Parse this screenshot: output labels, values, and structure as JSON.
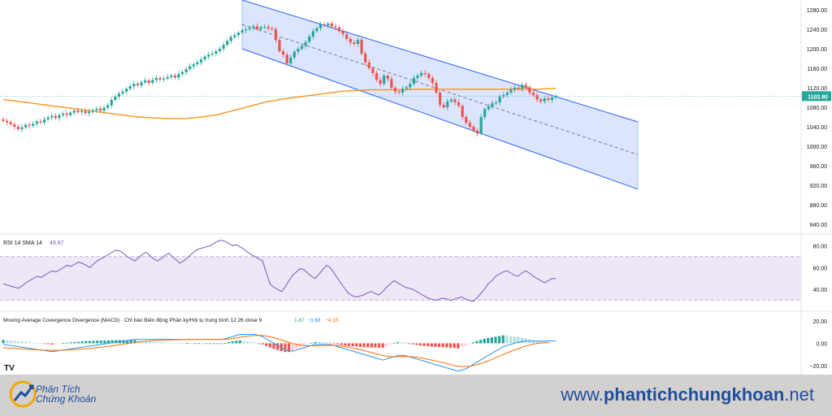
{
  "chart_data": [
    {
      "type": "candlestick",
      "title": "",
      "price_axis_ticks": [
        "1280.00",
        "1240.00",
        "1200.00",
        "1160.00",
        "1120.00",
        "1080.00",
        "1040.00",
        "1000.00",
        "960.00",
        "920.00",
        "880.00",
        "840.00"
      ],
      "ylim": [
        820,
        1300
      ],
      "last_price_label": "1102.80",
      "last_price": 1102.8,
      "close_series": [
        1052,
        1049,
        1045,
        1040,
        1035,
        1039,
        1044,
        1042,
        1046,
        1051,
        1049,
        1055,
        1059,
        1062,
        1058,
        1064,
        1067,
        1064,
        1069,
        1073,
        1070,
        1072,
        1068,
        1071,
        1074,
        1077,
        1073,
        1079,
        1084,
        1095,
        1102,
        1108,
        1112,
        1118,
        1123,
        1128,
        1125,
        1131,
        1135,
        1130,
        1136,
        1140,
        1137,
        1139,
        1142,
        1145,
        1141,
        1148,
        1152,
        1158,
        1164,
        1168,
        1172,
        1178,
        1184,
        1188,
        1190,
        1195,
        1200,
        1208,
        1216,
        1224,
        1228,
        1233,
        1238,
        1240,
        1243,
        1246,
        1240,
        1244,
        1245,
        1242,
        1240,
        1218,
        1195,
        1188,
        1170,
        1182,
        1194,
        1200,
        1206,
        1214,
        1225,
        1236,
        1242,
        1250,
        1248,
        1252,
        1246,
        1244,
        1236,
        1230,
        1220,
        1213,
        1210,
        1218,
        1190,
        1172,
        1160,
        1150,
        1136,
        1128,
        1145,
        1138,
        1120,
        1112,
        1110,
        1118,
        1121,
        1128,
        1140,
        1145,
        1150,
        1148,
        1140,
        1130,
        1110,
        1085,
        1080,
        1092,
        1096,
        1090,
        1083,
        1060,
        1048,
        1040,
        1032,
        1026,
        1060,
        1076,
        1082,
        1088,
        1090,
        1102,
        1105,
        1110,
        1116,
        1120,
        1118,
        1126,
        1121,
        1110,
        1105,
        1096,
        1092,
        1098,
        1095,
        1100,
        1102.8
      ],
      "sma_overlay_series": [
        1096,
        1095,
        1094,
        1093,
        1092,
        1091,
        1090,
        1089,
        1088,
        1087,
        1086,
        1085,
        1084,
        1083,
        1082,
        1081,
        1080,
        1079,
        1078,
        1077,
        1076,
        1075,
        1074,
        1073,
        1072,
        1071,
        1070,
        1069,
        1068,
        1067,
        1066,
        1065,
        1064,
        1063,
        1062,
        1061,
        1060,
        1060,
        1059,
        1059,
        1058,
        1058,
        1058,
        1057,
        1057,
        1057,
        1057,
        1057,
        1057,
        1057,
        1058,
        1058,
        1059,
        1060,
        1061,
        1062,
        1063,
        1064,
        1066,
        1068,
        1070,
        1072,
        1074,
        1076,
        1078,
        1080,
        1082,
        1084,
        1086,
        1088,
        1090,
        1092,
        1093,
        1094,
        1096,
        1097,
        1098,
        1099,
        1100,
        1101,
        1102,
        1103,
        1104,
        1105,
        1106,
        1107,
        1108,
        1109,
        1110,
        1111,
        1112,
        1113,
        1113,
        1114,
        1114,
        1115,
        1115,
        1115,
        1116,
        1116,
        1116,
        1116,
        1116,
        1116,
        1116,
        1116,
        1116,
        1116,
        1116,
        1117,
        1117,
        1117,
        1117,
        1117,
        1117,
        1117,
        1117,
        1117,
        1117,
        1117,
        1117,
        1117,
        1117,
        1117,
        1117,
        1117,
        1117,
        1117,
        1117,
        1117,
        1117,
        1117,
        1117,
        1117,
        1117,
        1117,
        1117,
        1117,
        1117,
        1117,
        1117,
        1117,
        1117,
        1117,
        1117,
        1118,
        1118,
        1118,
        1119
      ],
      "channel": {
        "upper_start": 1300,
        "upper_end": 1050,
        "mid_start": 1250,
        "mid_end": 983,
        "lower_start": 1200,
        "lower_end": 912
      },
      "colors": {
        "up": "#26a69a",
        "down": "#ef5350",
        "sma": "#f7931e",
        "channel_fill": "#d6e1fb",
        "channel_line": "#2962ff",
        "price_label_bg": "#26a69a"
      }
    },
    {
      "type": "line",
      "title": "RSI 14 SMA 14",
      "value_label": "49.87",
      "axis_ticks": [
        "80.00",
        "60.00",
        "40.00"
      ],
      "ylim": [
        20,
        90
      ],
      "band": [
        30,
        70
      ],
      "series": [
        {
          "values": [
            45,
            44,
            43,
            42,
            41,
            43,
            46,
            48,
            50,
            52,
            51,
            53,
            55,
            57,
            56,
            58,
            60,
            62,
            61,
            63,
            65,
            64,
            62,
            60,
            63,
            66,
            68,
            70,
            72,
            74,
            76,
            75,
            73,
            70,
            68,
            66,
            69,
            72,
            74,
            71,
            68,
            66,
            68,
            71,
            73,
            70,
            67,
            64,
            66,
            69,
            72,
            75,
            77,
            78,
            79,
            80,
            82,
            84,
            85,
            84,
            82,
            80,
            81,
            79,
            77,
            74,
            72,
            70,
            68,
            66,
            55,
            45,
            42,
            40,
            38,
            42,
            48,
            53,
            56,
            59,
            58,
            55,
            52,
            50,
            54,
            58,
            62,
            60,
            55,
            50,
            45,
            40,
            36,
            34,
            33,
            34,
            35,
            37,
            38,
            36,
            35,
            38,
            42,
            45,
            48,
            46,
            44,
            42,
            41,
            40,
            38,
            36,
            34,
            32,
            31,
            30,
            31,
            32,
            31,
            30,
            31,
            32,
            33,
            31,
            30,
            29,
            32,
            36,
            40,
            45,
            48,
            52,
            54,
            56,
            57,
            55,
            53,
            52,
            55,
            57,
            55,
            52,
            50,
            48,
            46,
            48,
            50,
            49.87
          ]
        }
      ],
      "colors": {
        "line": "#7e57c2",
        "band_fill": "#ede7f6"
      }
    },
    {
      "type": "bar",
      "title": "Moving Average Covergence Divergence (MACD) · Chỉ báo Biến động Phân kỳ/Hội tụ trung bình 12 26 close 9",
      "value_labels": [
        "1.87",
        "−3.68",
        "−4.15"
      ],
      "axis_ticks": [
        "20.00",
        "0.00",
        "−20.00"
      ],
      "ylim": [
        -28,
        28
      ],
      "macd": [
        -1,
        -1.5,
        -2,
        -2.5,
        -3,
        -3.5,
        -4,
        -4.5,
        -5,
        -5.5,
        -6,
        -6.5,
        -7,
        -7.5,
        -7,
        -6.5,
        -6,
        -5.5,
        -5,
        -4.5,
        -4,
        -3.5,
        -3,
        -2.5,
        -2,
        -1.5,
        -1,
        -0.5,
        0,
        0.5,
        1,
        1.5,
        2,
        2.5,
        3,
        3.5,
        3.5,
        3.5,
        3.5,
        3.5,
        3.5,
        3.5,
        3.5,
        3.5,
        3.5,
        3.5,
        3.5,
        3.5,
        3.5,
        3.5,
        3.5,
        3.5,
        3.5,
        3.5,
        3.5,
        3.5,
        3.5,
        3.5,
        3.5,
        4,
        5,
        6,
        7,
        8,
        8,
        8,
        8,
        8,
        7,
        6,
        4,
        2,
        0,
        -2,
        -4,
        -6,
        -7,
        -7,
        -6,
        -5,
        -4,
        -3,
        -2,
        -1,
        -1,
        -1,
        -1,
        -1,
        -2,
        -3,
        -4,
        -5,
        -6,
        -7,
        -8,
        -9,
        -10,
        -11,
        -12,
        -13,
        -14,
        -15,
        -14,
        -13,
        -12,
        -11,
        -11,
        -11,
        -12,
        -13,
        -14,
        -15,
        -16,
        -17,
        -18,
        -19,
        -20,
        -21,
        -22,
        -23,
        -24,
        -25,
        -24,
        -23,
        -21,
        -19,
        -17,
        -15,
        -13,
        -11,
        -9,
        -7,
        -5,
        -3,
        -2,
        -1,
        0,
        1,
        1.5,
        2,
        2,
        2,
        2,
        2,
        2,
        2,
        2,
        1.87
      ],
      "signal": [
        -4,
        -4.2,
        -4.4,
        -4.6,
        -4.8,
        -5,
        -5.2,
        -5.4,
        -5.6,
        -5.8,
        -6,
        -6.2,
        -6.3,
        -6.4,
        -6.4,
        -6.3,
        -6.2,
        -6,
        -5.8,
        -5.6,
        -5.4,
        -5.2,
        -5,
        -4.6,
        -4.2,
        -3.8,
        -3.4,
        -3,
        -2.6,
        -2.2,
        -1.8,
        -1.3,
        -0.8,
        -0.3,
        0.2,
        0.7,
        1.1,
        1.5,
        1.8,
        2.1,
        2.3,
        2.5,
        2.7,
        2.8,
        2.9,
        3,
        3.1,
        3.2,
        3.3,
        3.3,
        3.4,
        3.4,
        3.4,
        3.5,
        3.5,
        3.5,
        3.5,
        3.5,
        3.5,
        3.6,
        3.9,
        4.3,
        4.8,
        5.4,
        5.9,
        6.3,
        6.7,
        7,
        7.1,
        7,
        6.5,
        5.8,
        5,
        4,
        2.9,
        1.8,
        0.8,
        -0.2,
        -1,
        -1.6,
        -2,
        -2.2,
        -2.2,
        -2.2,
        -2.1,
        -2,
        -1.9,
        -1.8,
        -1.9,
        -2.1,
        -2.5,
        -3,
        -3.6,
        -4.3,
        -5,
        -5.8,
        -6.6,
        -7.4,
        -8.3,
        -9.2,
        -10.1,
        -11,
        -11.6,
        -12,
        -12.1,
        -12,
        -11.9,
        -11.8,
        -11.9,
        -12.1,
        -12.5,
        -13,
        -13.6,
        -14.3,
        -15,
        -15.8,
        -16.6,
        -17.4,
        -18.2,
        -19.1,
        -19.9,
        -20.5,
        -20.8,
        -20.8,
        -20.5,
        -19.9,
        -19.1,
        -18.1,
        -17,
        -15.7,
        -14.4,
        -12.9,
        -11.5,
        -10.1,
        -8.7,
        -7.3,
        -6,
        -4.8,
        -3.6,
        -2.5,
        -1.6,
        -0.8,
        -0.2,
        0.2,
        0.5,
        0.7
      ],
      "colors": {
        "macd_line": "#2196f3",
        "signal_line": "#ff6d00",
        "hist_up": "#26a69a",
        "hist_up_light": "#b2dfdb",
        "hist_down": "#ef5350",
        "hist_down_light": "#ffcdd2"
      }
    }
  ],
  "watermark_logo": "TV",
  "footer": {
    "brand_line1": "Phân Tích",
    "brand_line2": "Chứng Khoán",
    "url_prefix": "www.",
    "url_bold": "phantichchungkhoan",
    "url_suffix": ".net"
  }
}
